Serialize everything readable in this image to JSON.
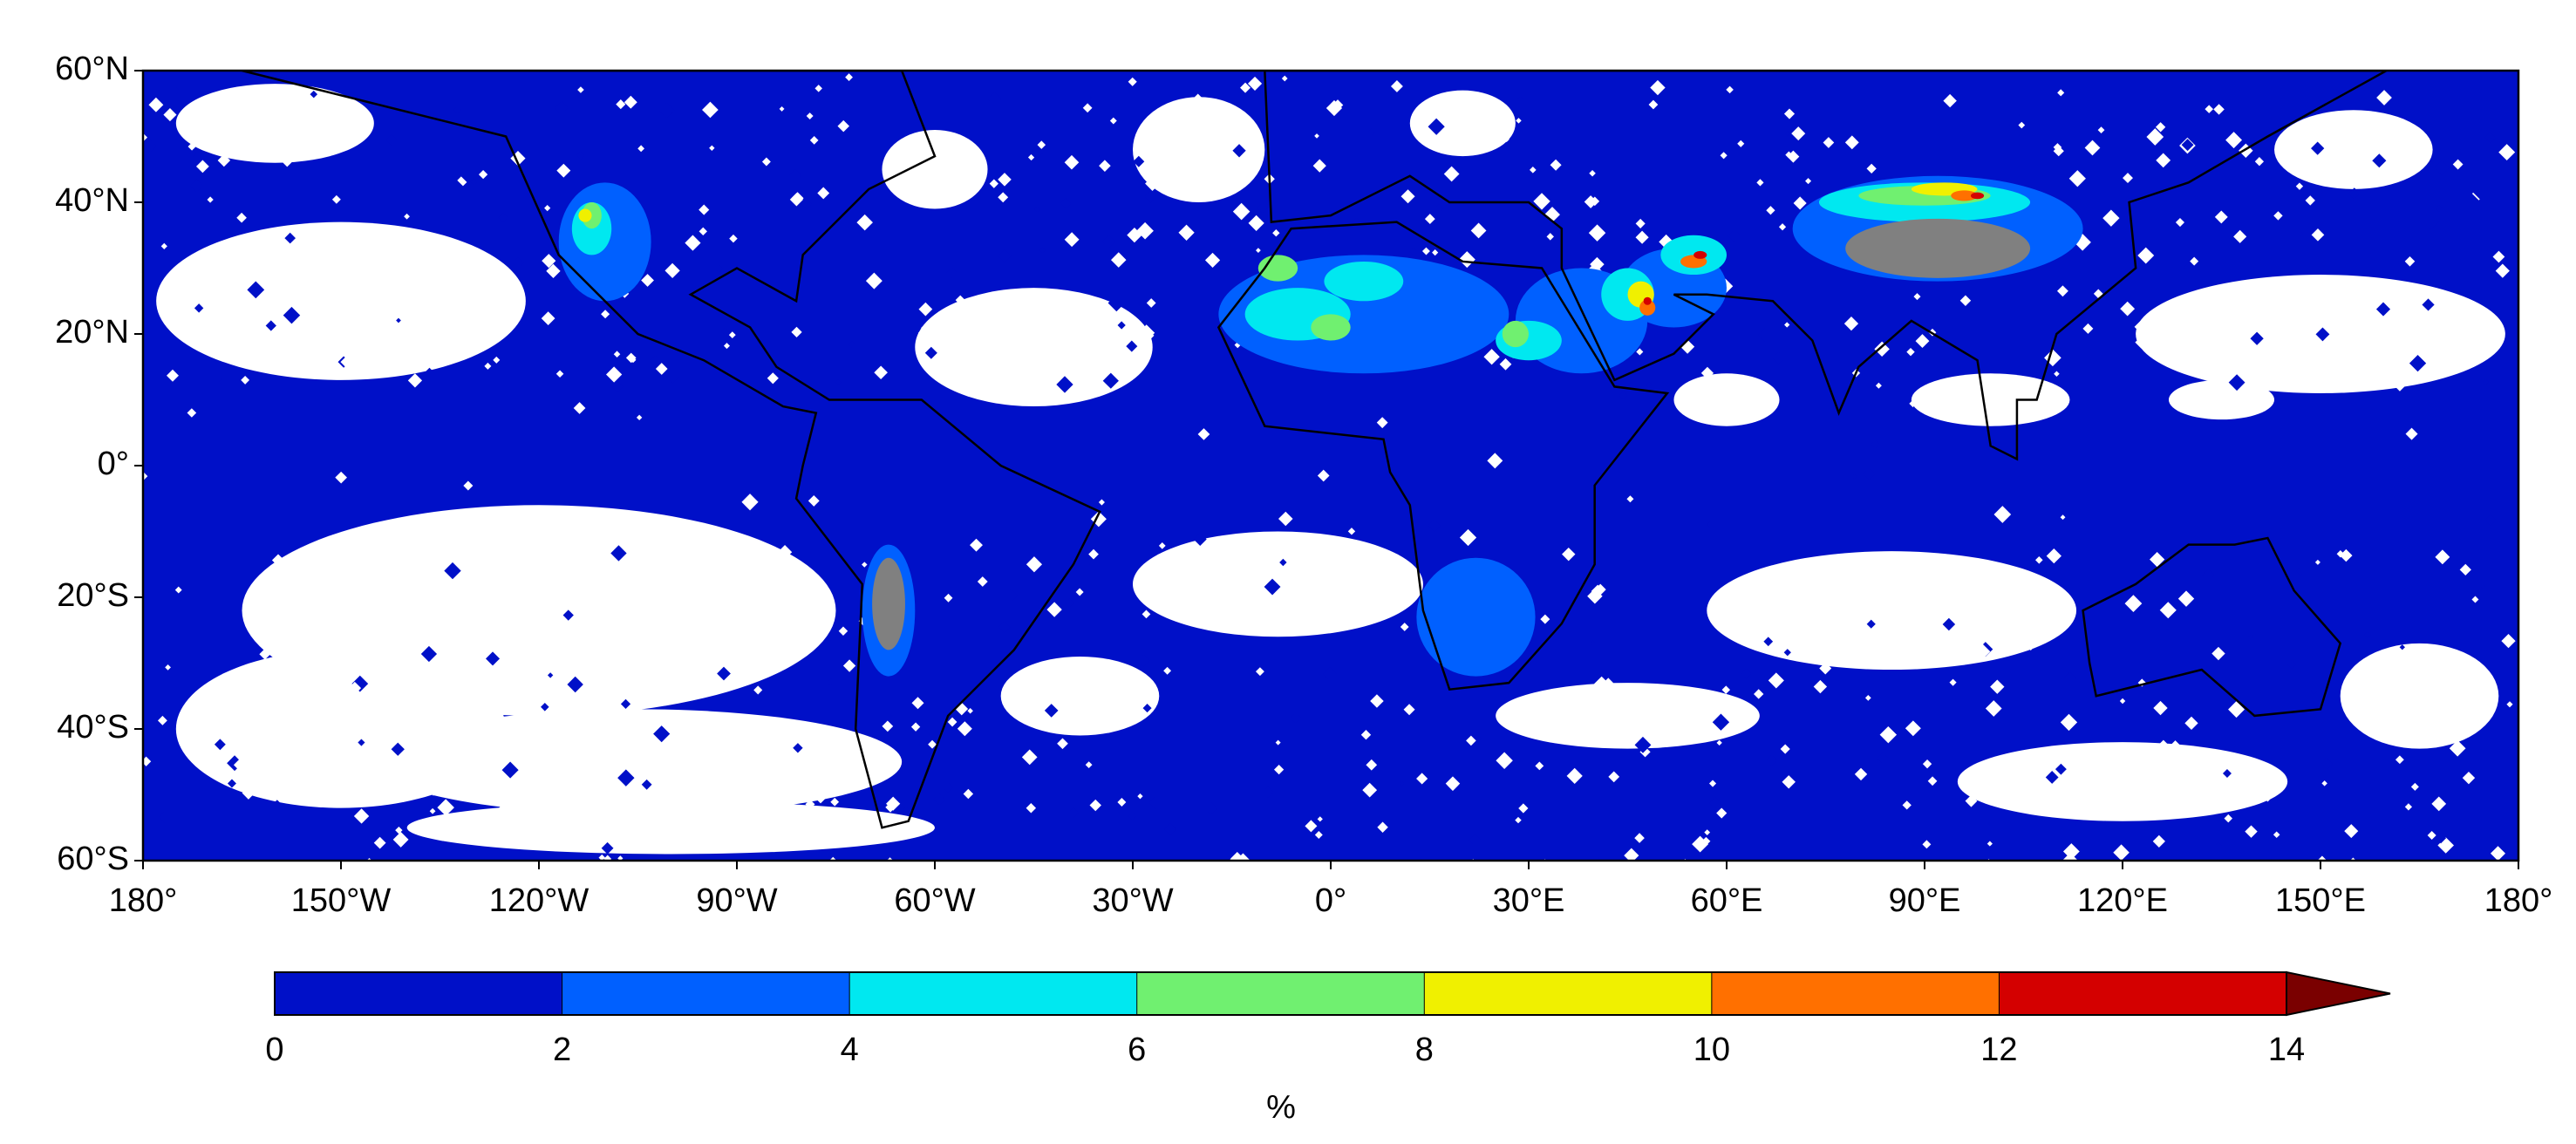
{
  "chart_data": {
    "type": "map",
    "xticks": [
      {
        "value": -180,
        "label": "180°"
      },
      {
        "value": -150,
        "label": "150°W"
      },
      {
        "value": -120,
        "label": "120°W"
      },
      {
        "value": -90,
        "label": "90°W"
      },
      {
        "value": -60,
        "label": "60°W"
      },
      {
        "value": -30,
        "label": "30°W"
      },
      {
        "value": 0,
        "label": "0°"
      },
      {
        "value": 30,
        "label": "30°E"
      },
      {
        "value": 60,
        "label": "60°E"
      },
      {
        "value": 90,
        "label": "90°E"
      },
      {
        "value": 120,
        "label": "120°E"
      },
      {
        "value": 150,
        "label": "150°E"
      },
      {
        "value": 180,
        "label": "180°"
      }
    ],
    "yticks": [
      {
        "value": 60,
        "label": "60°N"
      },
      {
        "value": 40,
        "label": "40°N"
      },
      {
        "value": 20,
        "label": "20°N"
      },
      {
        "value": 0,
        "label": "0°"
      },
      {
        "value": -20,
        "label": "20°S"
      },
      {
        "value": -40,
        "label": "40°S"
      },
      {
        "value": -60,
        "label": "60°S"
      }
    ],
    "xlim": [
      -180,
      180
    ],
    "ylim": [
      -60,
      60
    ],
    "colorbar": {
      "ticks": [
        0,
        2,
        4,
        6,
        8,
        10,
        12,
        14
      ],
      "colors": [
        "#0010c8",
        "#0060ff",
        "#00e8f0",
        "#70f070",
        "#f0f000",
        "#ff7000",
        "#d40000"
      ],
      "extend_color": "#7a0000",
      "label": "%"
    }
  }
}
